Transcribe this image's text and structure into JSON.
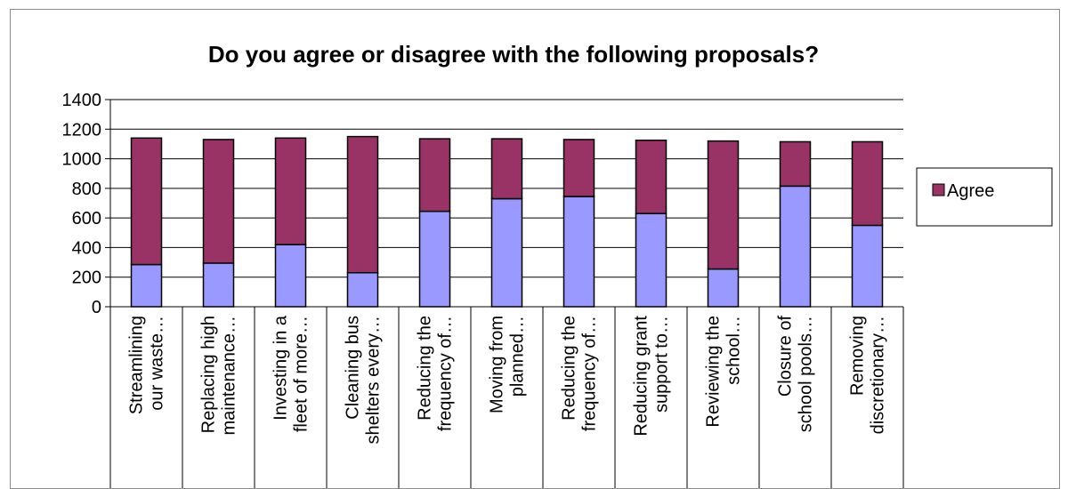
{
  "chart_data": {
    "type": "bar",
    "stacked": true,
    "title": "Do you agree or disagree with the following proposals?",
    "xlabel": "",
    "ylabel": "",
    "ylim": [
      0,
      1400
    ],
    "yticks": [
      0,
      200,
      400,
      600,
      800,
      1000,
      1200,
      1400
    ],
    "grid": true,
    "legend_position": "right",
    "categories": [
      [
        "Streamlining",
        "our waste…"
      ],
      [
        "Replacing high",
        "maintenance…"
      ],
      [
        "Investing in a",
        "fleet of more…"
      ],
      [
        "Cleaning bus",
        "shelters every…"
      ],
      [
        "Reducing the",
        "frequency of…"
      ],
      [
        "Moving from",
        "planned…"
      ],
      [
        "Reducing the",
        "frequency of…"
      ],
      [
        "Reducing grant",
        "support to…"
      ],
      [
        "Reviewing the",
        "school…"
      ],
      [
        "Closure of",
        "school pools…"
      ],
      [
        "Removing",
        "discretionary…"
      ]
    ],
    "series": [
      {
        "values": [
          285,
          295,
          420,
          230,
          645,
          730,
          745,
          630,
          255,
          815,
          550
        ],
        "color": "#9999ff"
      },
      {
        "name": "Agree",
        "values": [
          855,
          835,
          720,
          920,
          490,
          405,
          385,
          495,
          865,
          300,
          565
        ],
        "color": "#993366"
      }
    ]
  }
}
